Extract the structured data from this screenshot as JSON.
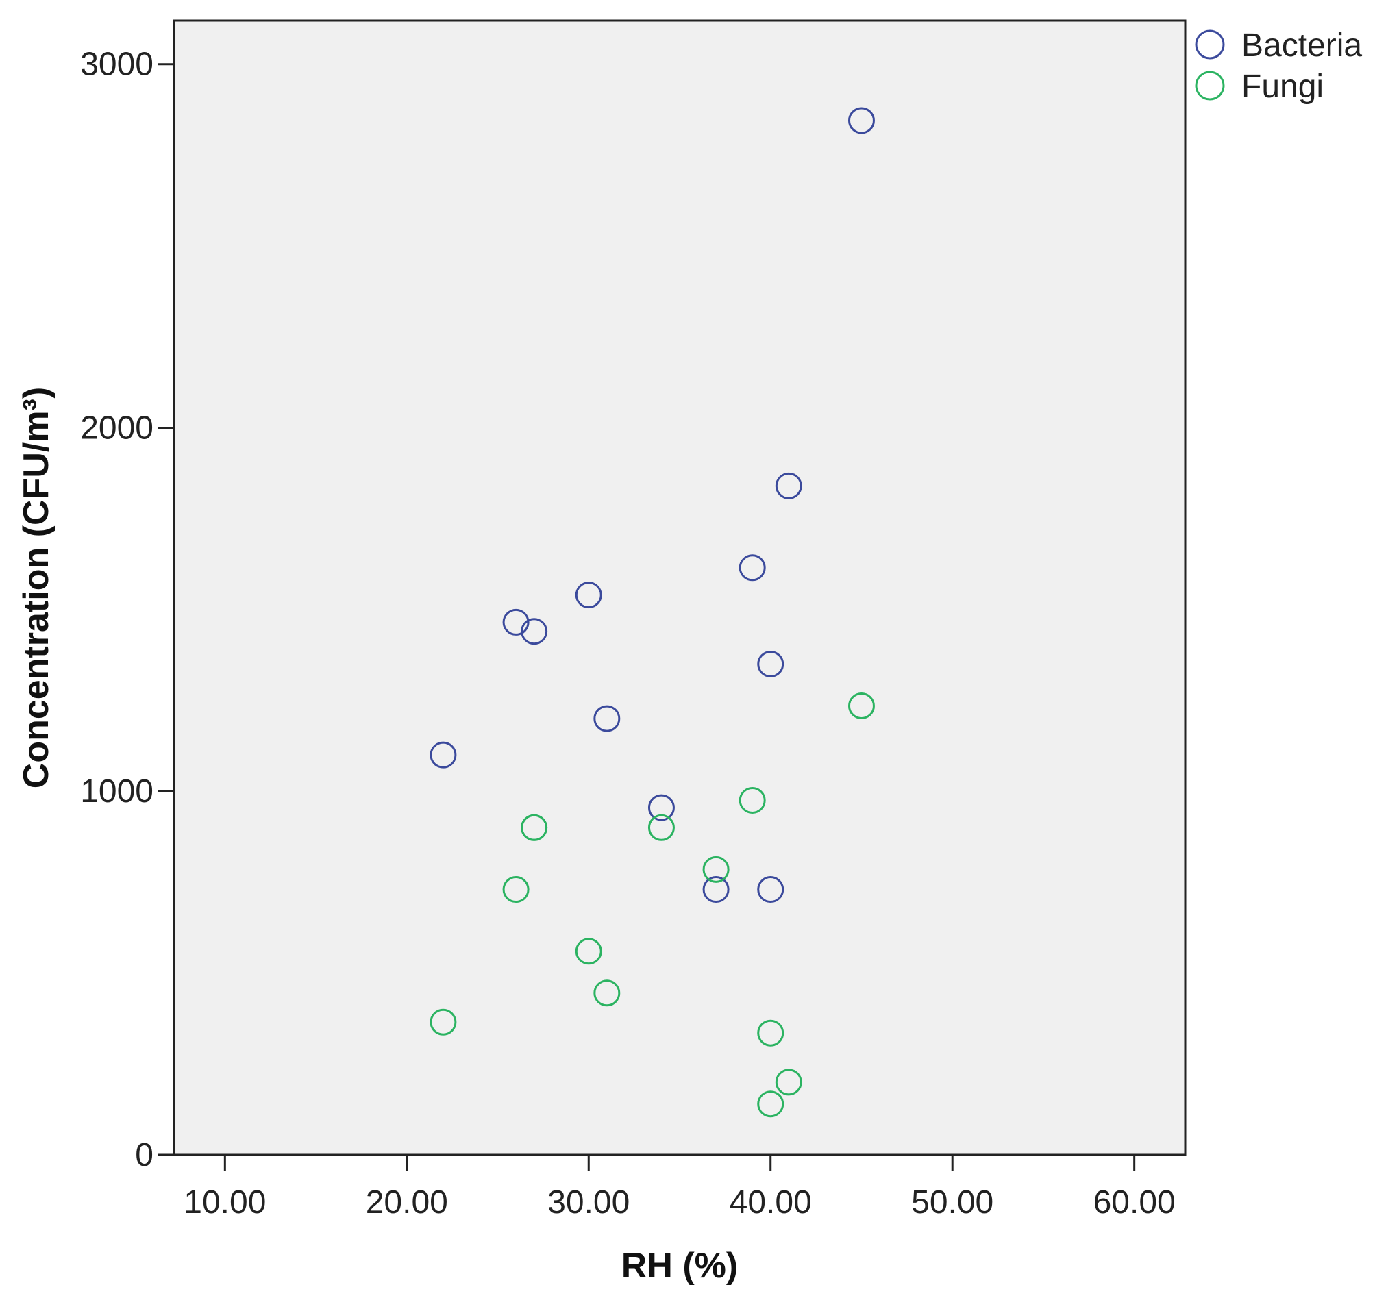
{
  "chart_data": {
    "type": "scatter",
    "title": "",
    "xlabel": "RH (%)",
    "ylabel": "Concentration (CFU/m³)",
    "xlim": [
      7.2,
      62.8
    ],
    "ylim": [
      0,
      3120
    ],
    "xticks": [
      10,
      20,
      30,
      40,
      50,
      60
    ],
    "xtick_labels": [
      "10.00",
      "20.00",
      "30.00",
      "40.00",
      "50.00",
      "60.00"
    ],
    "yticks": [
      0,
      1000,
      2000,
      3000
    ],
    "ytick_labels": [
      "0",
      "1000",
      "2000",
      "3000"
    ],
    "grid": false,
    "legend_position": "top-right",
    "background": "#f0f0f0",
    "series": [
      {
        "name": "Bacteria",
        "color": "#3b4a9c",
        "marker": "hollow-circle",
        "points": [
          [
            22,
            1100
          ],
          [
            26,
            1465
          ],
          [
            27,
            1440
          ],
          [
            30,
            1540
          ],
          [
            31,
            1200
          ],
          [
            34,
            955
          ],
          [
            37,
            730
          ],
          [
            39,
            1615
          ],
          [
            40,
            1350
          ],
          [
            40,
            730
          ],
          [
            41,
            1840
          ],
          [
            45,
            2845
          ]
        ]
      },
      {
        "name": "Fungi",
        "color": "#2bb361",
        "marker": "hollow-circle",
        "points": [
          [
            22,
            365
          ],
          [
            26,
            730
          ],
          [
            27,
            900
          ],
          [
            27,
            900
          ],
          [
            30,
            560
          ],
          [
            31,
            445
          ],
          [
            34,
            900
          ],
          [
            37,
            785
          ],
          [
            39,
            975
          ],
          [
            40,
            335
          ],
          [
            40,
            140
          ],
          [
            41,
            200
          ],
          [
            45,
            1235
          ]
        ]
      }
    ]
  }
}
